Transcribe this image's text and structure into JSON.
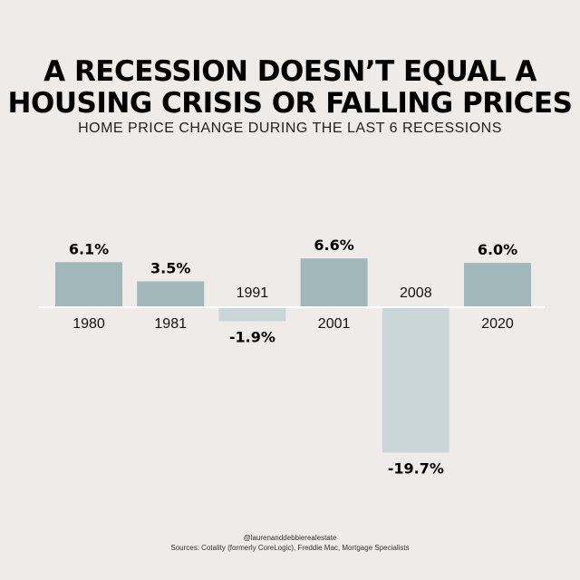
{
  "title_lines": [
    "A RECESSION DOESN’T EQUAL A",
    "HOUSING CRISIS OR FALLING PRICES"
  ],
  "subtitle": "HOME PRICE CHANGE DURING THE LAST 6 RECESSIONS",
  "footer": {
    "handle": "@laurenanddebbierealestate",
    "sources": "Sources: Cotality (formerly CoreLogic), Freddie Mac, Mortgage Specialists"
  },
  "colors": {
    "background": "#efebe8",
    "positive_bar": "#a2b7ba",
    "negative_bar": "#c9d7d9",
    "baseline": "#ffffff",
    "text": "#000000"
  },
  "chart_data": {
    "type": "bar",
    "title": "A RECESSION DOESN’T EQUAL A HOUSING CRISIS OR FALLING PRICES",
    "subtitle": "HOME PRICE CHANGE DURING THE LAST 6 RECESSIONS",
    "categories": [
      "1980",
      "1981",
      "1991",
      "2001",
      "2008",
      "2020"
    ],
    "values": [
      6.1,
      3.5,
      -1.9,
      6.6,
      -19.7,
      6.0
    ],
    "value_labels": [
      "6.1%",
      "3.5%",
      "-1.9%",
      "6.6%",
      "-19.7%",
      "6.0%"
    ],
    "unit": "%",
    "ylim": [
      -19.7,
      6.6
    ],
    "grid": false,
    "legend": "none"
  }
}
